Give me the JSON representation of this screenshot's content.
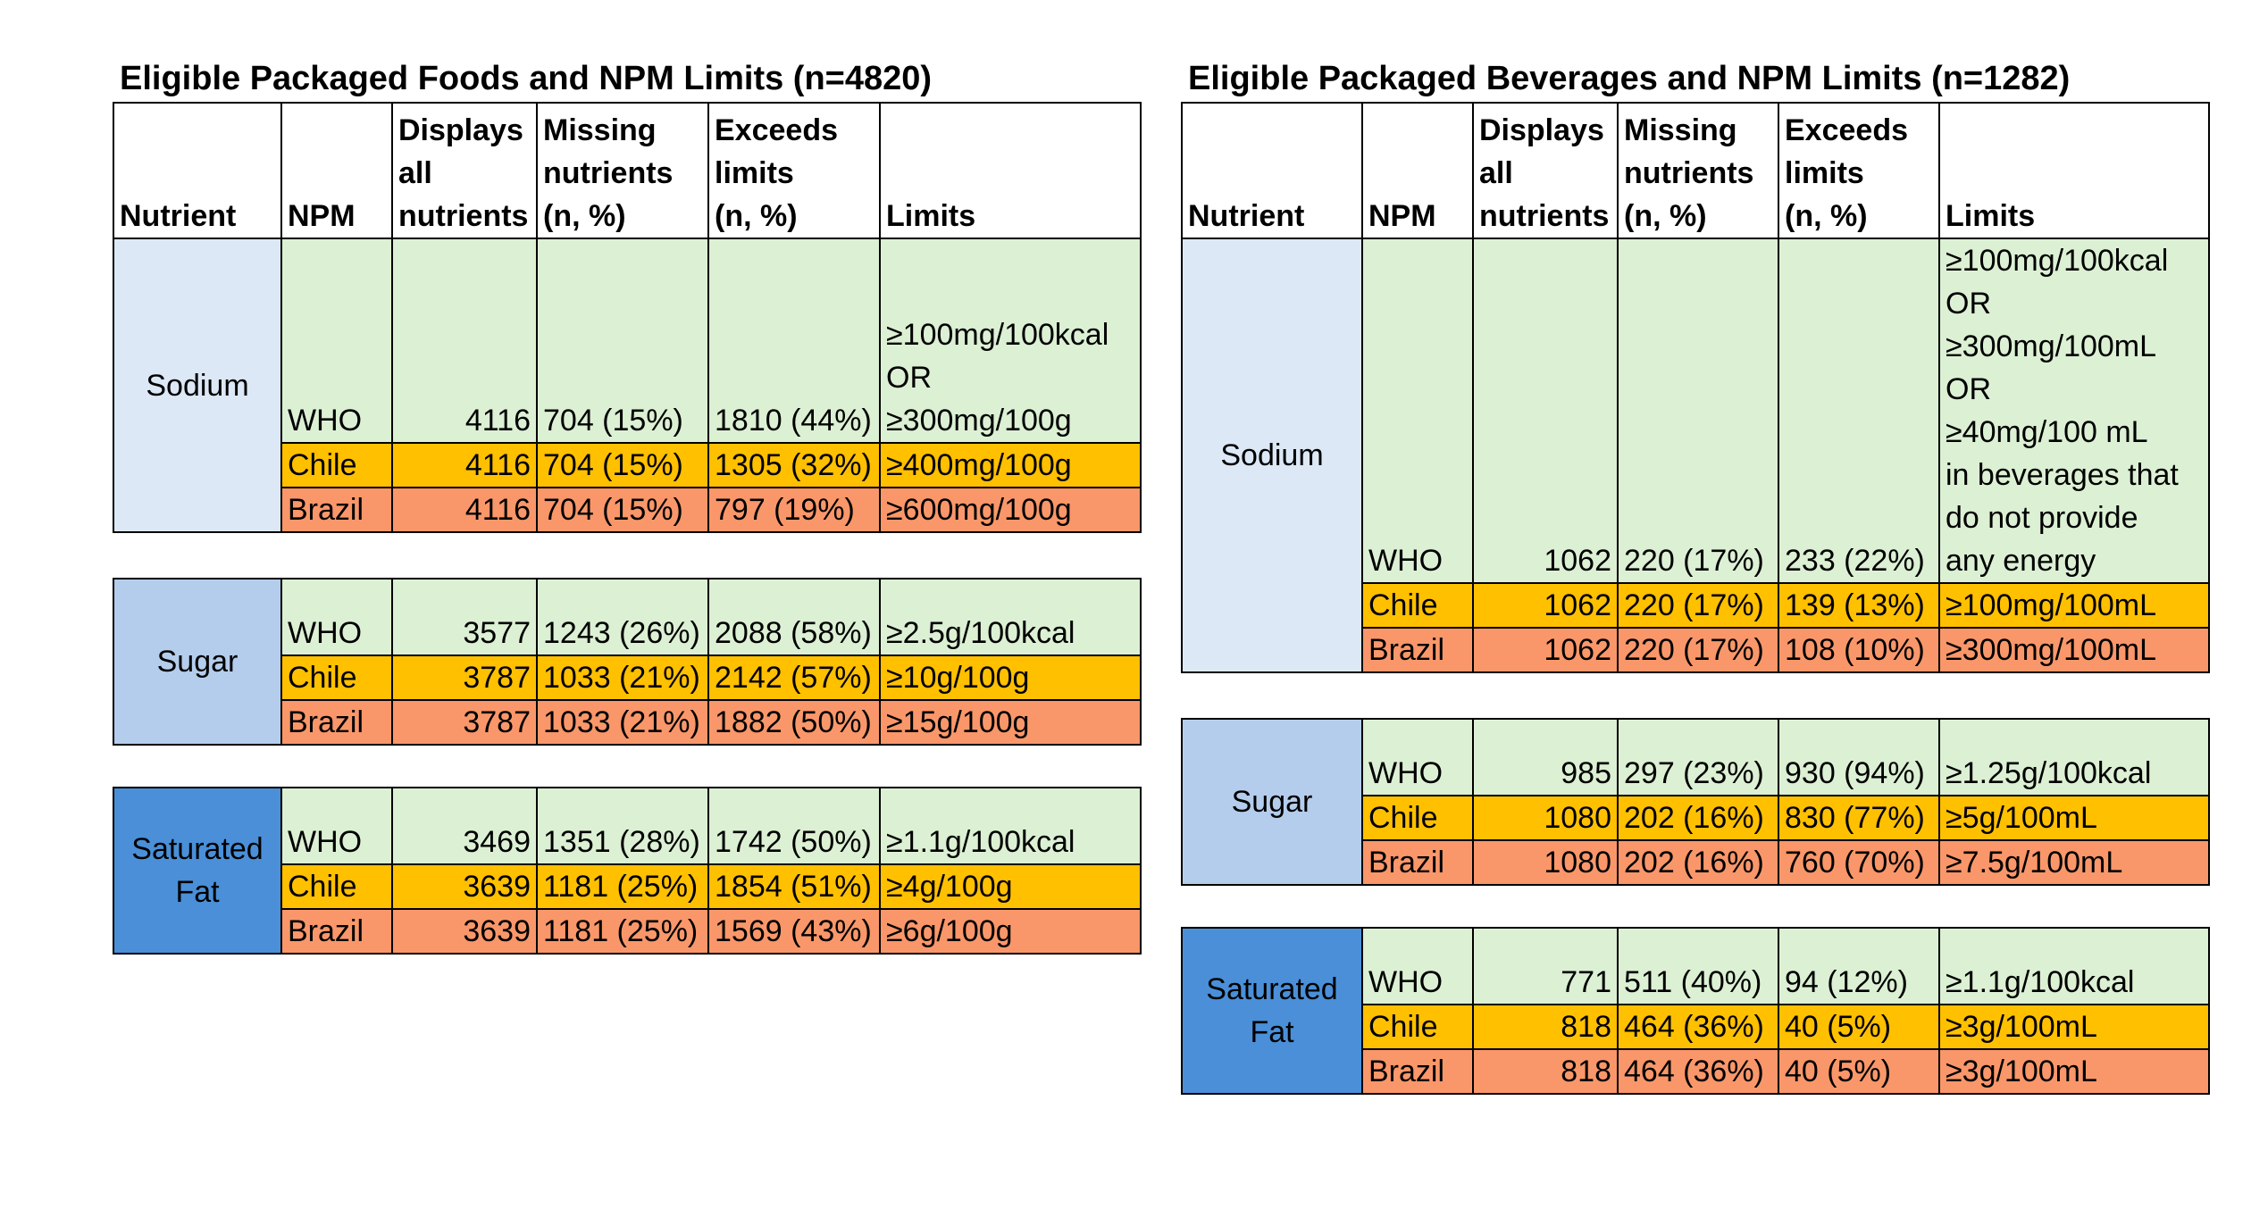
{
  "colors": {
    "who": "#dcf0d4",
    "chile": "#ffc000",
    "brazil": "#f9976a",
    "sodium_cell": "#dce8f6",
    "sugar_cell": "#b4cdec",
    "satfat_cell": "#4a8fd8"
  },
  "headers": {
    "nutrient": "Nutrient",
    "npm": "NPM",
    "displays": [
      "Displays",
      "all",
      "nutrients"
    ],
    "missing": [
      "Missing",
      "nutrients",
      "(n, %)"
    ],
    "exceeds": [
      "Exceeds",
      "limits",
      "(n, %)"
    ],
    "limits": "Limits"
  },
  "foods": {
    "title": "Eligible Packaged Foods and NPM Limits (n=4820)",
    "blocks": [
      {
        "nutrient": "Sodium",
        "rows": [
          {
            "npm": "WHO",
            "displays": "4116",
            "missing": "704 (15%)",
            "exceeds": "1810 (44%)",
            "limits": [
              "≥100mg/100kcal",
              "OR",
              "≥300mg/100g"
            ]
          },
          {
            "npm": "Chile",
            "displays": "4116",
            "missing": "704 (15%)",
            "exceeds": "1305 (32%)",
            "limits": [
              "≥400mg/100g"
            ]
          },
          {
            "npm": "Brazil",
            "displays": "4116",
            "missing": "704 (15%)",
            "exceeds": "797 (19%)",
            "limits": [
              "≥600mg/100g"
            ]
          }
        ]
      },
      {
        "nutrient": "Sugar",
        "rows": [
          {
            "npm": "WHO",
            "displays": "3577",
            "missing": "1243 (26%)",
            "exceeds": "2088 (58%)",
            "limits": [
              "≥2.5g/100kcal"
            ]
          },
          {
            "npm": "Chile",
            "displays": "3787",
            "missing": "1033 (21%)",
            "exceeds": "2142 (57%)",
            "limits": [
              "≥10g/100g"
            ]
          },
          {
            "npm": "Brazil",
            "displays": "3787",
            "missing": "1033 (21%)",
            "exceeds": "1882 (50%)",
            "limits": [
              "≥15g/100g"
            ]
          }
        ]
      },
      {
        "nutrient": "Saturated Fat",
        "rows": [
          {
            "npm": "WHO",
            "displays": "3469",
            "missing": "1351 (28%)",
            "exceeds": "1742 (50%)",
            "limits": [
              "≥1.1g/100kcal"
            ]
          },
          {
            "npm": "Chile",
            "displays": "3639",
            "missing": "1181 (25%)",
            "exceeds": "1854 (51%)",
            "limits": [
              "≥4g/100g"
            ]
          },
          {
            "npm": "Brazil",
            "displays": "3639",
            "missing": "1181 (25%)",
            "exceeds": "1569 (43%)",
            "limits": [
              "≥6g/100g"
            ]
          }
        ]
      }
    ]
  },
  "beverages": {
    "title": "Eligible Packaged Beverages and NPM Limits (n=1282)",
    "blocks": [
      {
        "nutrient": "Sodium",
        "rows": [
          {
            "npm": "WHO",
            "displays": "1062",
            "missing": "220 (17%)",
            "exceeds": "233 (22%)",
            "limits": [
              "≥100mg/100kcal",
              "OR",
              "≥300mg/100mL",
              "OR",
              "≥40mg/100 mL",
              "in beverages that",
              "do not provide",
              "any energy"
            ]
          },
          {
            "npm": "Chile",
            "displays": "1062",
            "missing": "220 (17%)",
            "exceeds": "139 (13%)",
            "limits": [
              "≥100mg/100mL"
            ]
          },
          {
            "npm": "Brazil",
            "displays": "1062",
            "missing": "220 (17%)",
            "exceeds": "108 (10%)",
            "limits": [
              "≥300mg/100mL"
            ]
          }
        ]
      },
      {
        "nutrient": "Sugar",
        "rows": [
          {
            "npm": "WHO",
            "displays": "985",
            "missing": "297 (23%)",
            "exceeds": "930 (94%)",
            "limits": [
              "≥1.25g/100kcal"
            ]
          },
          {
            "npm": "Chile",
            "displays": "1080",
            "missing": "202 (16%)",
            "exceeds": "830 (77%)",
            "limits": [
              "≥5g/100mL"
            ]
          },
          {
            "npm": "Brazil",
            "displays": "1080",
            "missing": "202 (16%)",
            "exceeds": "760 (70%)",
            "limits": [
              "≥7.5g/100mL"
            ]
          }
        ]
      },
      {
        "nutrient": "Saturated Fat",
        "rows": [
          {
            "npm": "WHO",
            "displays": "771",
            "missing": "511 (40%)",
            "exceeds": "94 (12%)",
            "limits": [
              "≥1.1g/100kcal"
            ]
          },
          {
            "npm": "Chile",
            "displays": "818",
            "missing": "464 (36%)",
            "exceeds": "40 (5%)",
            "limits": [
              "≥3g/100mL"
            ]
          },
          {
            "npm": "Brazil",
            "displays": "818",
            "missing": "464 (36%)",
            "exceeds": "40 (5%)",
            "limits": [
              "≥3g/100mL"
            ]
          }
        ]
      }
    ]
  }
}
